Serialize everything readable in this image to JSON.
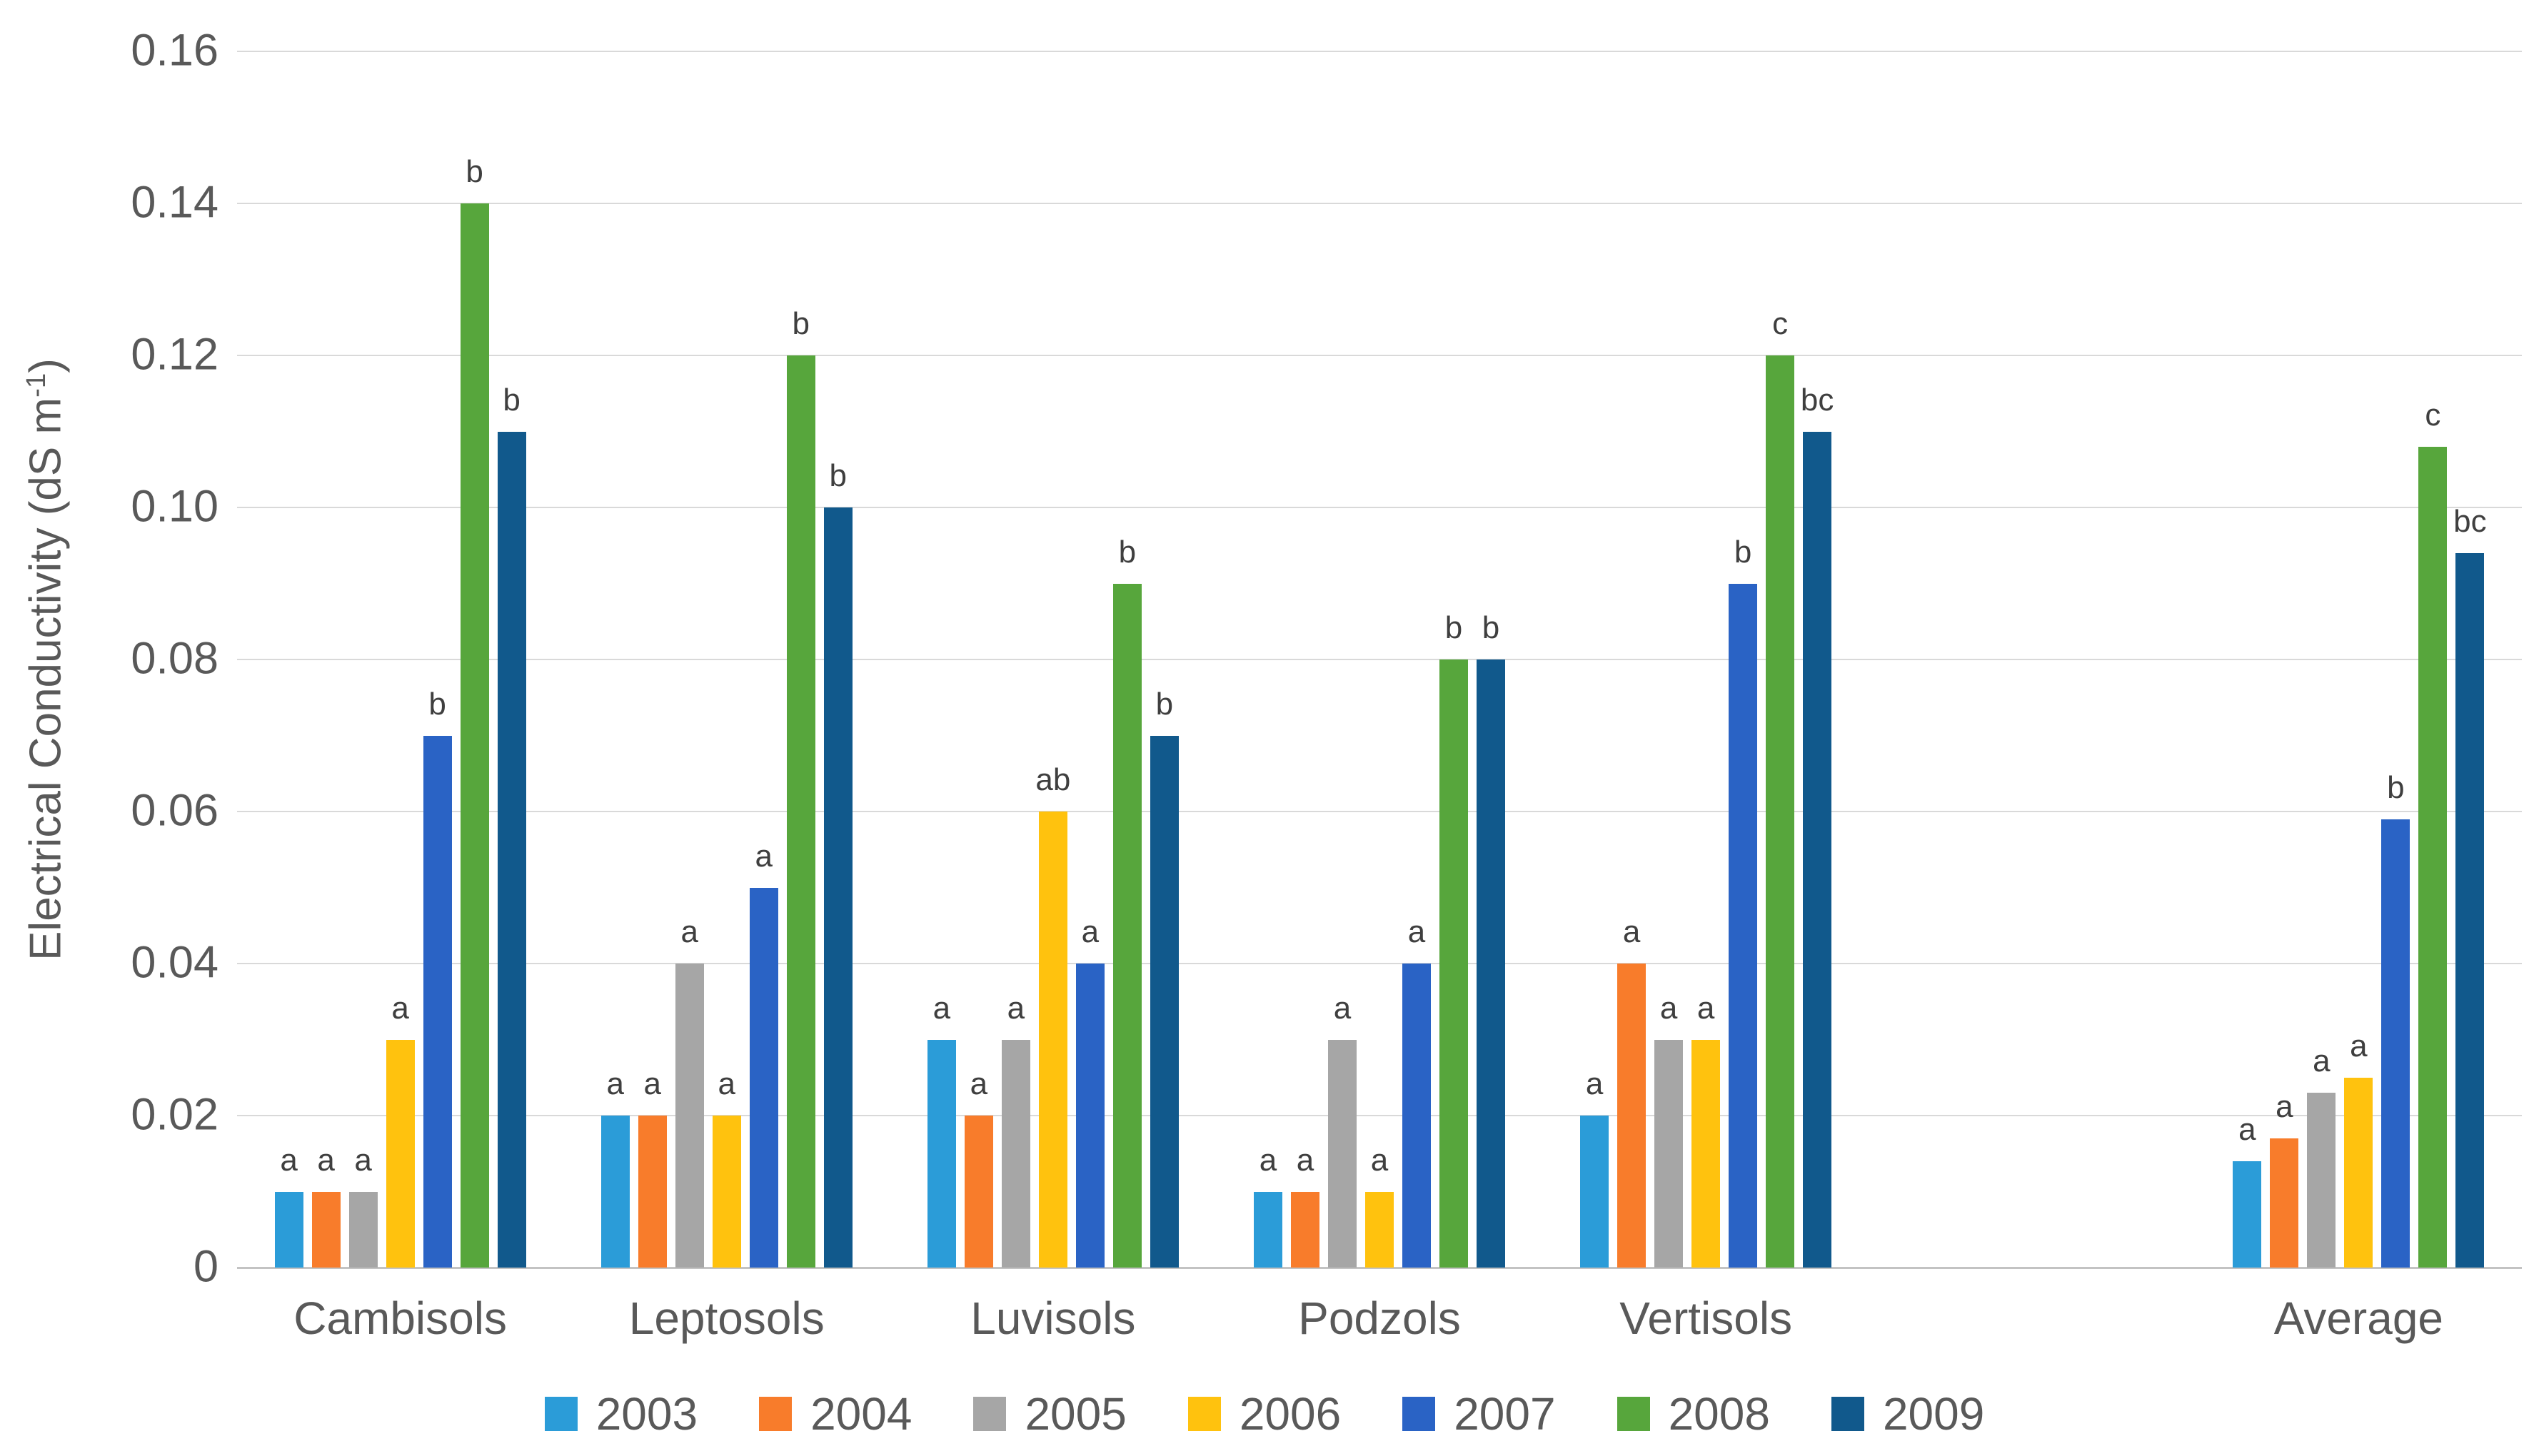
{
  "chart_data": {
    "type": "bar",
    "title": "",
    "xlabel": "",
    "ylabel": "Electrical Conductivity (dS m⁻¹)",
    "ylabel_parts": {
      "text": "Electrical Conductivity (dS m",
      "sup": "-1",
      "close": ")"
    },
    "ylim": [
      0,
      0.16
    ],
    "y_tick_labels": [
      "0.16",
      "0.14",
      "0.12",
      "0.10",
      "0.08",
      "0.06",
      "0.04",
      "0.02",
      "0"
    ],
    "grid": true,
    "legend_position": "bottom",
    "gap_before_last_category": true,
    "categories": [
      "Cambisols",
      "Leptosols",
      "Luvisols",
      "Podzols",
      "Vertisols",
      "Average"
    ],
    "series": [
      {
        "name": "2003",
        "color": "#2b9cd8",
        "values": [
          0.01,
          0.02,
          0.03,
          0.01,
          0.02,
          0.014
        ],
        "letters": [
          "a",
          "a",
          "a",
          "a",
          "a",
          "a"
        ]
      },
      {
        "name": "2004",
        "color": "#f87c2b",
        "values": [
          0.01,
          0.02,
          0.02,
          0.01,
          0.04,
          0.017
        ],
        "letters": [
          "a",
          "a",
          "a",
          "a",
          "a",
          "a"
        ]
      },
      {
        "name": "2005",
        "color": "#a6a6a6",
        "values": [
          0.01,
          0.04,
          0.03,
          0.03,
          0.03,
          0.023
        ],
        "letters": [
          "a",
          "a",
          "a",
          "a",
          "a",
          "a"
        ]
      },
      {
        "name": "2006",
        "color": "#ffc20e",
        "values": [
          0.03,
          0.02,
          0.06,
          0.01,
          0.03,
          0.025
        ],
        "letters": [
          "a",
          "a",
          "ab",
          "a",
          "a",
          "a"
        ]
      },
      {
        "name": "2007",
        "color": "#2a63c5",
        "values": [
          0.07,
          0.05,
          0.04,
          0.04,
          0.09,
          0.059
        ],
        "letters": [
          "b",
          "a",
          "a",
          "a",
          "b",
          "b"
        ]
      },
      {
        "name": "2008",
        "color": "#57a63c",
        "values": [
          0.14,
          0.12,
          0.09,
          0.08,
          0.12,
          0.108
        ],
        "letters": [
          "b",
          "b",
          "b",
          "b",
          "c",
          "c"
        ]
      },
      {
        "name": "2009",
        "color": "#11598c",
        "values": [
          0.11,
          0.1,
          0.07,
          0.08,
          0.11,
          0.094
        ],
        "letters": [
          "b",
          "b",
          "b",
          "b",
          "bc",
          "bc"
        ]
      }
    ]
  }
}
